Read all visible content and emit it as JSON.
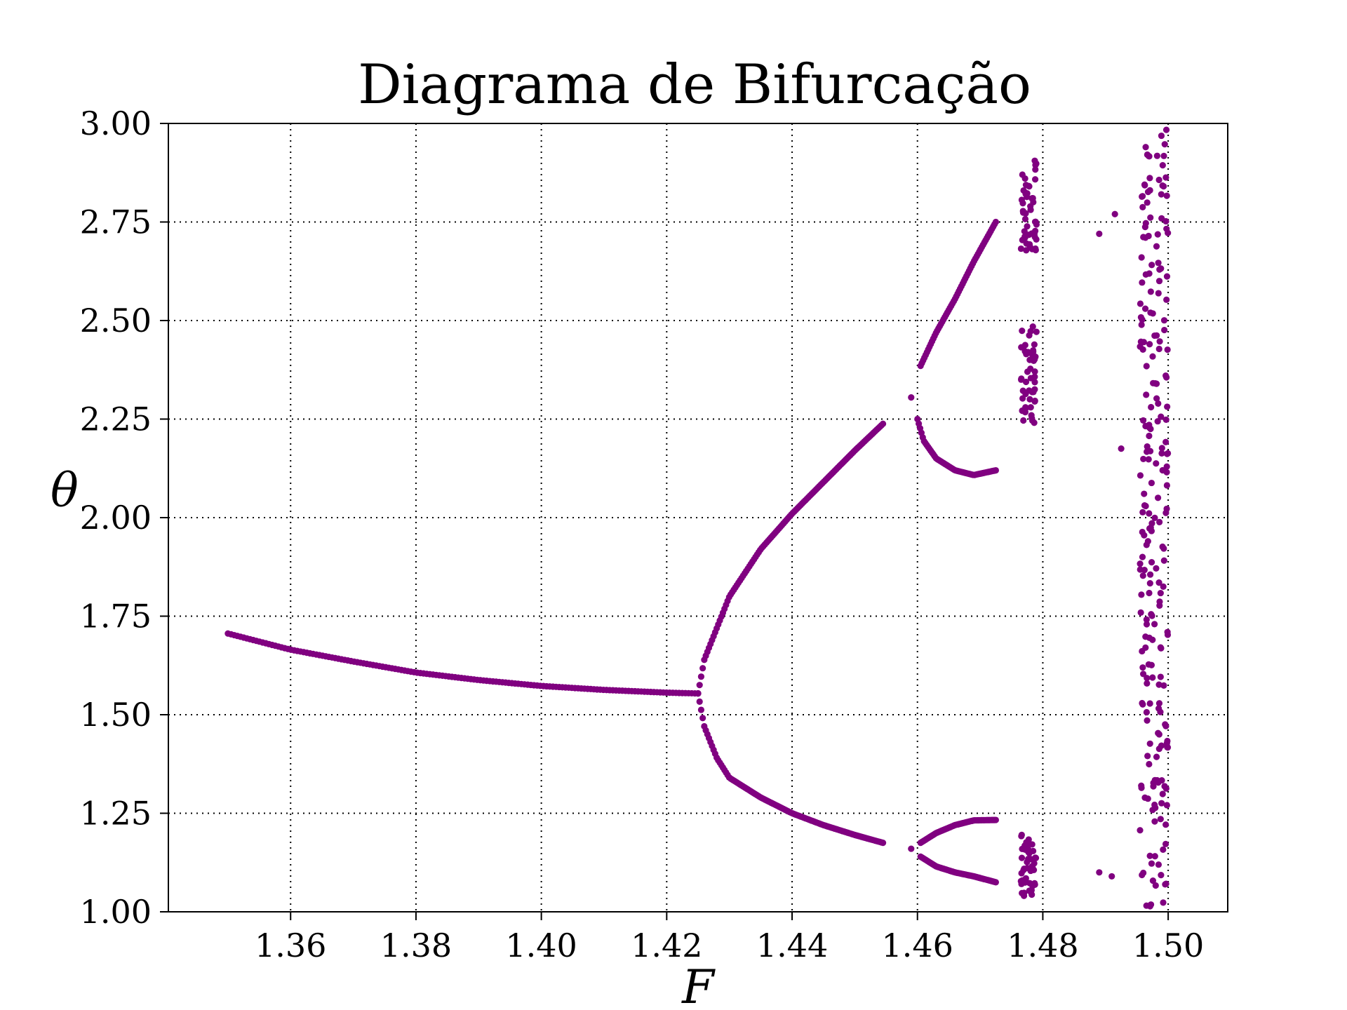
{
  "chart_data": {
    "type": "scatter",
    "title": "Diagrama de Bifurcação",
    "xlabel": "F",
    "ylabel": "θ",
    "xlim": [
      1.3405,
      1.5095
    ],
    "ylim": [
      1.0,
      3.0
    ],
    "x_ticks": [
      1.36,
      1.38,
      1.4,
      1.42,
      1.44,
      1.46,
      1.48,
      1.5
    ],
    "x_tick_labels": [
      "1.36",
      "1.38",
      "1.40",
      "1.42",
      "1.44",
      "1.46",
      "1.48",
      "1.50"
    ],
    "y_ticks": [
      1.0,
      1.25,
      1.5,
      1.75,
      2.0,
      2.25,
      2.5,
      2.75,
      3.0
    ],
    "y_tick_labels": [
      "1.00",
      "1.25",
      "1.50",
      "1.75",
      "2.00",
      "2.25",
      "2.50",
      "2.75",
      "3.00"
    ],
    "grid": true,
    "marker_color": "#800080",
    "branches": [
      {
        "name": "period-1",
        "f": [
          1.35,
          1.425
        ],
        "points": [
          [
            1.35,
            1.706
          ],
          [
            1.36,
            1.665
          ],
          [
            1.37,
            1.635
          ],
          [
            1.38,
            1.607
          ],
          [
            1.39,
            1.588
          ],
          [
            1.4,
            1.573
          ],
          [
            1.41,
            1.563
          ],
          [
            1.42,
            1.556
          ],
          [
            1.425,
            1.554
          ]
        ],
        "count": 150
      },
      {
        "name": "period-2-upper",
        "f": [
          1.425,
          1.4545
        ],
        "points": [
          [
            1.425,
            1.554
          ],
          [
            1.426,
            1.64
          ],
          [
            1.428,
            1.72
          ],
          [
            1.43,
            1.8
          ],
          [
            1.435,
            1.92
          ],
          [
            1.44,
            2.01
          ],
          [
            1.445,
            2.09
          ],
          [
            1.45,
            2.17
          ],
          [
            1.4545,
            2.238
          ]
        ],
        "count": 120
      },
      {
        "name": "period-2-lower",
        "f": [
          1.425,
          1.4545
        ],
        "points": [
          [
            1.425,
            1.554
          ],
          [
            1.426,
            1.47
          ],
          [
            1.428,
            1.39
          ],
          [
            1.43,
            1.34
          ],
          [
            1.435,
            1.29
          ],
          [
            1.44,
            1.25
          ],
          [
            1.445,
            1.22
          ],
          [
            1.45,
            1.195
          ],
          [
            1.4545,
            1.175
          ]
        ],
        "count": 120
      },
      {
        "name": "period-4-top",
        "f": [
          1.4605,
          1.4725
        ],
        "points": [
          [
            1.4605,
            2.385
          ],
          [
            1.463,
            2.47
          ],
          [
            1.466,
            2.555
          ],
          [
            1.469,
            2.65
          ],
          [
            1.4725,
            2.75
          ]
        ],
        "count": 60
      },
      {
        "name": "period-4-mid",
        "f": [
          1.46,
          1.4725
        ],
        "points": [
          [
            1.46,
            2.25
          ],
          [
            1.461,
            2.195
          ],
          [
            1.463,
            2.15
          ],
          [
            1.466,
            2.12
          ],
          [
            1.469,
            2.108
          ],
          [
            1.4725,
            2.12
          ]
        ],
        "count": 60
      },
      {
        "name": "period-4-low-upper",
        "f": [
          1.4605,
          1.4725
        ],
        "points": [
          [
            1.4605,
            1.175
          ],
          [
            1.463,
            1.2
          ],
          [
            1.466,
            1.22
          ],
          [
            1.469,
            1.232
          ],
          [
            1.4725,
            1.233
          ]
        ],
        "count": 60
      },
      {
        "name": "period-4-low-lower",
        "f": [
          1.4605,
          1.4725
        ],
        "points": [
          [
            1.4605,
            1.14
          ],
          [
            1.463,
            1.115
          ],
          [
            1.466,
            1.1
          ],
          [
            1.469,
            1.09
          ],
          [
            1.4725,
            1.075
          ]
        ],
        "count": 60
      }
    ],
    "isolated_points": [
      [
        1.459,
        2.305
      ],
      [
        1.459,
        1.16
      ]
    ],
    "chaotic_bands": [
      {
        "f_range": [
          1.4765,
          1.479
        ],
        "theta_bands": [
          [
            2.67,
            2.91
          ],
          [
            2.24,
            2.49
          ],
          [
            1.04,
            1.2
          ]
        ],
        "count": 150
      },
      {
        "f_range": [
          1.4955,
          1.5
        ],
        "theta_bands": [
          [
            1.0,
            3.0
          ]
        ],
        "count": 230
      }
    ],
    "extra_points": [
      [
        1.489,
        2.72
      ],
      [
        1.4915,
        2.77
      ],
      [
        1.4925,
        2.175
      ],
      [
        1.489,
        1.1
      ],
      [
        1.491,
        1.09
      ]
    ]
  }
}
